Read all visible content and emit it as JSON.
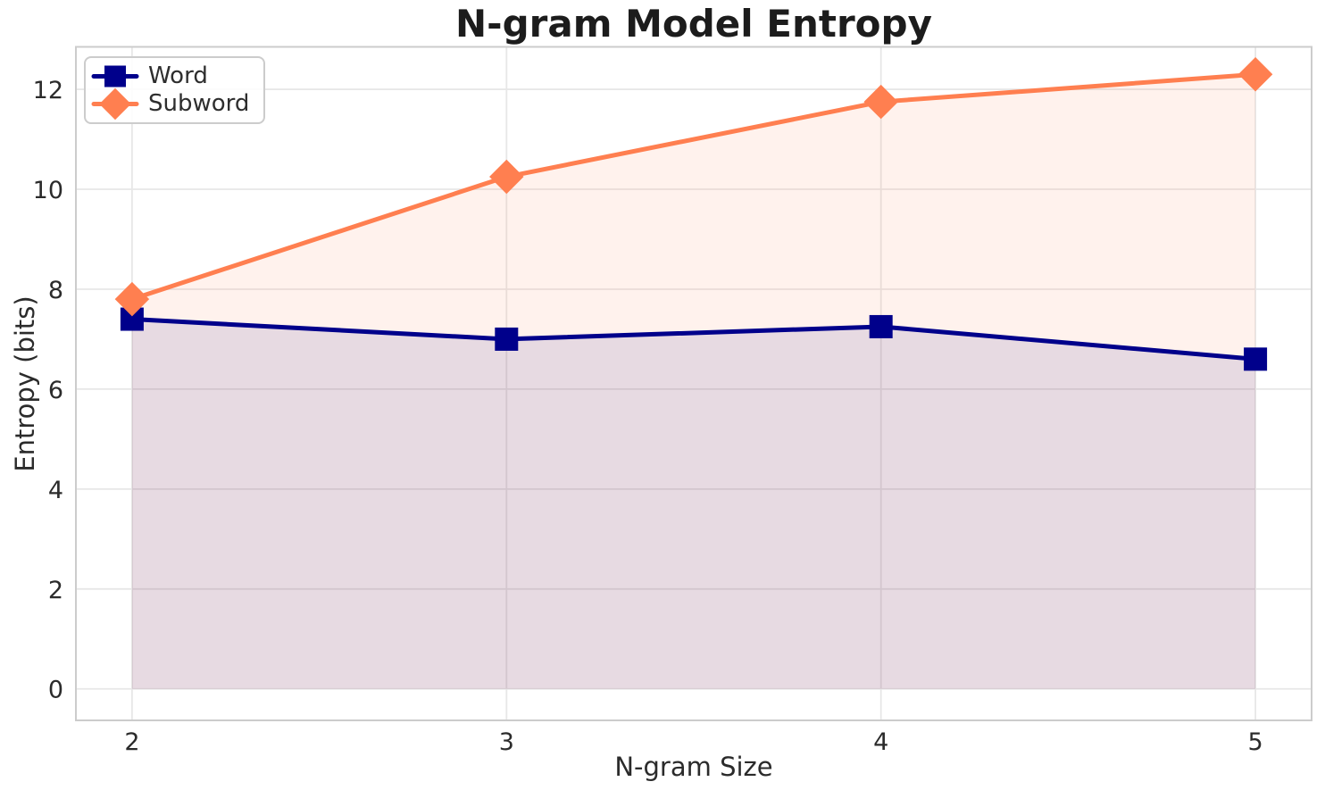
{
  "chart_data": {
    "type": "line",
    "title": "N-gram Model Entropy",
    "xlabel": "N-gram Size",
    "ylabel": "Entropy (bits)",
    "x": [
      2,
      3,
      4,
      5
    ],
    "series": [
      {
        "name": "Word",
        "values": [
          7.4,
          7.0,
          7.25,
          6.6
        ],
        "color": "#00008B",
        "marker": "square",
        "area_fill": true,
        "fill_alpha": 0.1
      },
      {
        "name": "Subword",
        "values": [
          7.8,
          10.25,
          11.75,
          12.3
        ],
        "color": "#FF7F50",
        "marker": "diamond",
        "area_fill": true,
        "fill_alpha": 0.1
      }
    ],
    "xticks": [
      2,
      3,
      4,
      5
    ],
    "xtick_labels": [
      "2",
      "3",
      "4",
      "5"
    ],
    "yticks": [
      0,
      2,
      4,
      6,
      8,
      10,
      12
    ],
    "ytick_labels": [
      "0",
      "2",
      "4",
      "6",
      "8",
      "10",
      "12"
    ],
    "xlim": [
      1.85,
      5.15
    ],
    "ylim": [
      -0.63,
      12.85
    ],
    "grid": true,
    "fill_baseline": 0,
    "legend_position": "upper left",
    "style": {
      "background": "#ffffff",
      "grid_color": "#e7e7e7",
      "spine_color": "#cccccc",
      "tick_color": "#2b2b2b",
      "title_color": "#1c1c1c"
    }
  }
}
